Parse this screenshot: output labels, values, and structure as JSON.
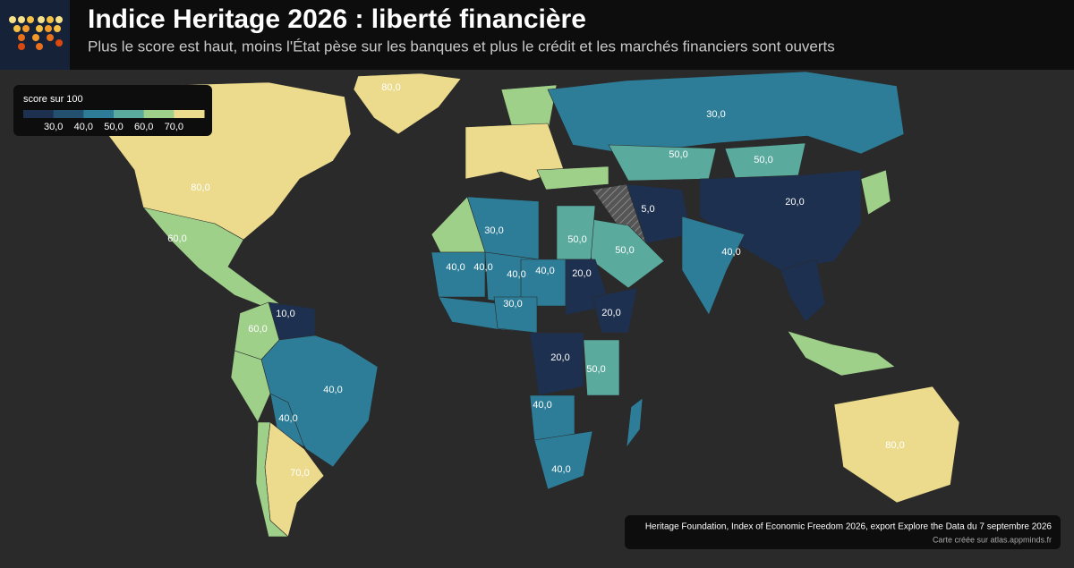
{
  "header": {
    "title": "Indice Heritage 2026 : liberté financière",
    "subtitle": "Plus le score est haut, moins l'État pèse sur les banques et plus le crédit et les marchés financiers sont ouverts"
  },
  "legend": {
    "title": "score sur 100",
    "colors": [
      "#1e3050",
      "#24506f",
      "#2d7d98",
      "#5aab9e",
      "#9fd08a",
      "#ecdb8d"
    ],
    "ticks": [
      "30,0",
      "40,0",
      "50,0",
      "60,0",
      "70,0"
    ]
  },
  "map": {
    "labels": [
      "80,0",
      "30,0",
      "80,0",
      "50,0",
      "50,0",
      "20,0",
      "5,0",
      "60,0",
      "30,0",
      "50,0",
      "50,0",
      "40,0",
      "40,0",
      "40,0",
      "40,0",
      "40,0",
      "20,0",
      "30,0",
      "20,0",
      "10,0",
      "60,0",
      "40,0",
      "20,0",
      "50,0",
      "40,0",
      "40,0",
      "70,0",
      "40,0",
      "80,0"
    ]
  },
  "footer": {
    "source": "Heritage Foundation, Index of Economic Freedom 2026, export Explore the Data du 7 septembre 2026",
    "credit": "Carte créée sur atlas.appminds.fr"
  }
}
